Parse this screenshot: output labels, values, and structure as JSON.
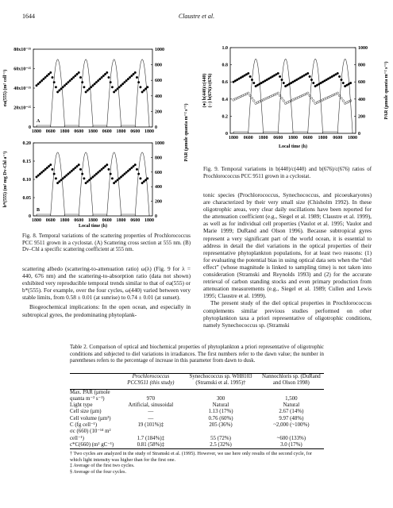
{
  "header": {
    "page": "1644",
    "running_head": "Claustre et al."
  },
  "fig8": {
    "panel_a": {
      "label": "A",
      "y_label": "σa(555) (m² cell⁻¹)",
      "y_ticks": [
        "0",
        "20x10⁻¹⁵",
        "40x10⁻¹⁵",
        "60x10⁻¹⁵",
        "80x10⁻¹⁵"
      ],
      "y2_ticks": [
        "0",
        "200",
        "400",
        "600",
        "800",
        "1000"
      ]
    },
    "panel_b": {
      "label": "B",
      "y_label": "b*(555) (m² mg Dv-Chl a⁻¹)",
      "y_ticks": [
        "0",
        "0.05",
        "0.10",
        "0.15",
        "0.20"
      ],
      "y2_ticks": [
        "0",
        "200",
        "400",
        "600",
        "800",
        "1000"
      ]
    },
    "x_ticks": [
      "1800",
      "0600",
      "1800",
      "0600",
      "1800",
      "0600",
      "1800",
      "0600",
      "1800"
    ],
    "x_label": "Local time (h)",
    "y2_label": "PAR (µmole quanta m⁻² s⁻¹)",
    "caption": "Fig. 8.  Temporal variations of the scattering properties of Prochlorococcus PCC 9511 grown in a cyclostat. (A) Scattering cross section at 555 nm. (B) Dv–Chl a specific scattering coefficient at 555 nm."
  },
  "fig9": {
    "legend": [
      "(●) b(440)/c(440)",
      "(○) b(676)/c(676)"
    ],
    "y_ticks": [
      "0",
      "0.2",
      "0.4",
      "0.6",
      "0.8",
      "1.0"
    ],
    "y2_ticks": [
      "0",
      "200",
      "400",
      "600",
      "800",
      "1000"
    ],
    "x_ticks": [
      "1800",
      "0600",
      "1800",
      "0600",
      "1800",
      "0600",
      "1800",
      "0600",
      "1800"
    ],
    "x_label": "Local time (h)",
    "y2_label": "PAR (µmole quanta m⁻² s⁻¹)",
    "caption": "Fig. 9.  Temporal variations in b(440)/c(440) and b(676)/c(676) ratios of Prochlorococcus PCC 9511 grown in a cyclostat."
  },
  "body": {
    "left": [
      "scattering albedo (scattering-to-attenuation ratio) ω(λ) (Fig. 9 for λ = 440, 676 nm) and the scattering-to-absorption ratio (data not shown) exhibited very reproducible temporal trends similar to that of σa(555) or b*(555). For example, over the four cycles, ω(440) varied between very stable limits, from 0.58 ± 0.01 (at sunrise) to 0.74 ± 0.01 (at sunset).",
      "Biogeochemical implications: In the open ocean, and especially in subtropical gyres, the predominating phytoplank-"
    ],
    "right": [
      "tonic species (Prochlorococcus, Synechococcus, and picoeukaryotes) are characterized by their very small size (Chisholm 1992). In these oligotrophic areas, very clear daily oscillations have been reported for the attenuation coefficient (e.g., Siegel et al. 1989; Claustre et al. 1999), as well as for individual cell properties (Vaulot et al. 1995; Vaulot and Marie 1999; DuRand and Olson 1996). Because subtropical gyres represent a very significant part of the world ocean, it is essential to address in detail the diel variations in the optical properties of their representative phytoplankton populations, for at least two reasons: (1) for evaluating the potential bias in using optical data sets when the “diel effect” (whose magnitude is linked to sampling time) is not taken into consideration (Stramski and Reynolds 1993) and (2) for the accurate retrieval of carbon standing stocks and even primary production from attenuation measurements (e.g., Siegel et al. 1989; Cullen and Lewis 1995; Claustre et al. 1999).",
      "The present study of the diel optical properties in Prochlorococcus complements similar previous studies performed on other phytoplankton taxa a priori representative of oligotrophic conditions, namely Synechococcus sp. (Stramski"
    ]
  },
  "table": {
    "title": "Table 2.  Comparison of optical and biochemical properties of phytoplankton a priori representative of oligotrophic conditions and subjected to diel variations in irradiances. The first numbers refer to the dawn value; the number in parentheses refers to the percentage of increase in this parameter from dawn to dusk.",
    "columns": [
      "Prochlorococcus PCC9511 (this study)",
      "Synechococcus sp. WH8103 (Stramski et al. 1995)†",
      "Nannochloris sp. (DuRand and Olson 1998)"
    ],
    "rows": [
      [
        "Max. PAR (µmole quanta m⁻² s⁻¹)",
        "970",
        "300",
        "1,500"
      ],
      [
        "Light type",
        "Artificial, sinusoidal",
        "Natural",
        "Natural"
      ],
      [
        "Cell size (µm)",
        "—",
        "1.13 (17%)",
        "2.67 (14%)"
      ],
      [
        "Cell volume (µm³)",
        "—",
        "0.76 (60%)",
        "9.97 (48%)"
      ],
      [
        "C (fg cell⁻¹)",
        "19 (101%)‡",
        "205 (36%)",
        "~2,000 (~100%)"
      ],
      [
        "σc (660) (10⁻¹⁴ m² cell⁻¹)",
        "1.7 (184%)‡",
        "55 (72%)",
        "~600 (133%)"
      ],
      [
        "c*C(660) (m² gC⁻¹)",
        "0.81 (58%)‡",
        "2.5 (32%)",
        "3.0 (17%)"
      ]
    ],
    "footnotes": [
      "† Two cycles are analyzed in the study of Stramski et al. (1995). However, we use here only results of the second cycle, for which light intensity was higher than for the first one.",
      "‡ Average of the first two cycles.",
      "§ Average of the four cycles."
    ]
  }
}
